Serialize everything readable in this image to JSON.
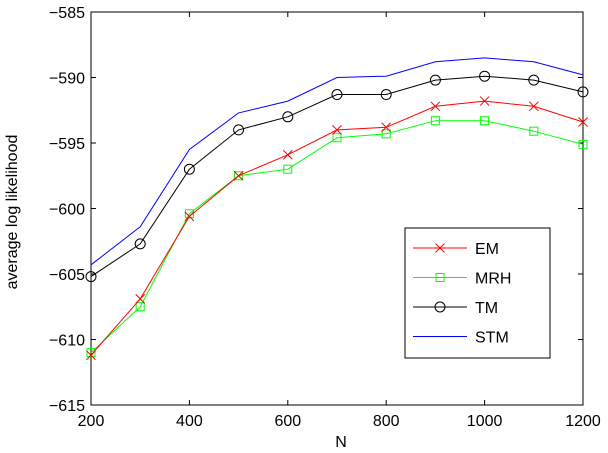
{
  "chart_data": {
    "type": "line",
    "xlabel": "N",
    "ylabel": "average log likelihood",
    "xlim": [
      200,
      1200
    ],
    "ylim": [
      -615,
      -585
    ],
    "xticks": [
      200,
      400,
      600,
      800,
      1000,
      1200
    ],
    "yticks": [
      -615,
      -610,
      -605,
      -600,
      -595,
      -590,
      -585
    ],
    "x": [
      200,
      300,
      400,
      500,
      600,
      700,
      800,
      900,
      1000,
      1100,
      1200
    ],
    "grid": false,
    "legend_position": "lower-right",
    "series": [
      {
        "name": "EM",
        "color": "#ff0000",
        "marker": "x",
        "values": [
          -611.2,
          -606.9,
          -600.6,
          -597.5,
          -595.9,
          -594.0,
          -593.8,
          -592.2,
          -591.8,
          -592.2,
          -593.4
        ]
      },
      {
        "name": "MRH",
        "color": "#00ff00",
        "marker": "square",
        "values": [
          -611.0,
          -607.5,
          -600.4,
          -597.5,
          -597.0,
          -594.6,
          -594.3,
          -593.3,
          -593.3,
          -594.1,
          -595.1
        ]
      },
      {
        "name": "TM",
        "color": "#000000",
        "marker": "circle",
        "values": [
          -605.2,
          -602.7,
          -597.0,
          -594.0,
          -593.0,
          -591.3,
          -591.3,
          -590.2,
          -589.9,
          -590.2,
          -591.1
        ]
      },
      {
        "name": "STM",
        "color": "#0000ff",
        "marker": "none",
        "values": [
          -604.3,
          -601.4,
          -595.5,
          -592.7,
          -591.8,
          -590.0,
          -589.9,
          -588.8,
          -588.5,
          -588.8,
          -589.8
        ]
      }
    ]
  }
}
